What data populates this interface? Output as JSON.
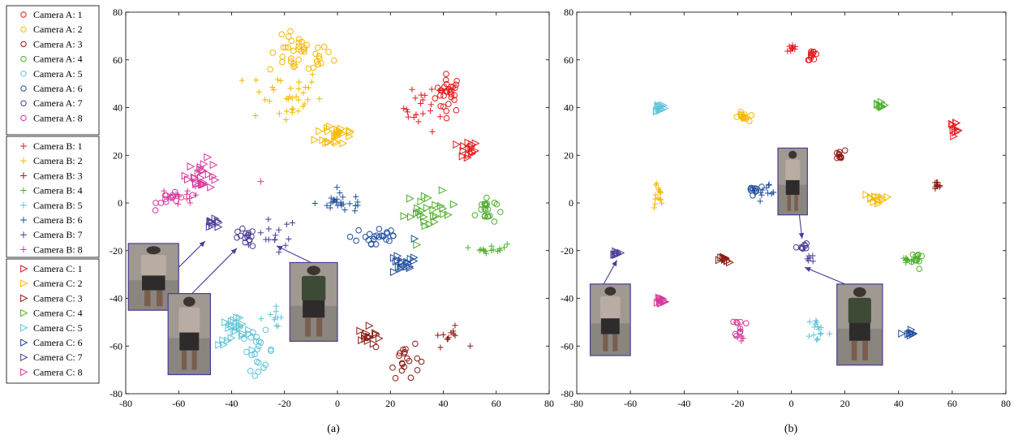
{
  "legend": {
    "groups": [
      {
        "marker": "circle",
        "entries": [
          "Camera A: 1",
          "Camera A: 2",
          "Camera A: 3",
          "Camera A: 4",
          "Camera A: 5",
          "Camera A: 6",
          "Camera A: 7",
          "Camera A: 8"
        ]
      },
      {
        "marker": "plus",
        "entries": [
          "Camera B: 1",
          "Camera B: 2",
          "Camera B: 3",
          "Camera B: 4",
          "Camera B: 5",
          "Camera B: 6",
          "Camera B: 7",
          "Camera B: 8"
        ]
      },
      {
        "marker": "triangle",
        "entries": [
          "Camera C: 1",
          "Camera C: 2",
          "Camera C: 3",
          "Camera C: 4",
          "Camera C: 5",
          "Camera C: 6",
          "Camera C: 7",
          "Camera C: 8"
        ]
      }
    ],
    "colors": [
      "#e31a1c",
      "#f5b800",
      "#8b1a10",
      "#4daf2a",
      "#5bc5d8",
      "#1f4e9e",
      "#4b3b96",
      "#d6389c"
    ]
  },
  "chart_data": [
    {
      "type": "scatter",
      "caption": "(a)",
      "xlim": [
        -80,
        80
      ],
      "ylim": [
        -80,
        80
      ],
      "xticks": [
        -80,
        -60,
        -40,
        -20,
        0,
        20,
        40,
        60,
        80
      ],
      "yticks": [
        -80,
        -60,
        -40,
        -20,
        0,
        20,
        40,
        60,
        80
      ],
      "clusters": [
        {
          "camera": "A",
          "id": 1,
          "x": 42,
          "y": 46,
          "sx": 2.5,
          "sy": 4,
          "n": 30
        },
        {
          "camera": "B",
          "id": 1,
          "x": 33,
          "y": 40,
          "sx": 4,
          "sy": 5,
          "n": 22
        },
        {
          "camera": "C",
          "id": 1,
          "x": 49,
          "y": 22,
          "sx": 2,
          "sy": 2,
          "n": 15
        },
        {
          "camera": "A",
          "id": 2,
          "x": -14,
          "y": 62,
          "sx": 6,
          "sy": 4,
          "n": 40
        },
        {
          "camera": "B",
          "id": 2,
          "x": -20,
          "y": 45,
          "sx": 7,
          "sy": 6,
          "n": 35
        },
        {
          "camera": "C",
          "id": 2,
          "x": 0,
          "y": 29,
          "sx": 4,
          "sy": 3,
          "n": 25
        },
        {
          "camera": "A",
          "id": 3,
          "x": 25,
          "y": -65,
          "sx": 3,
          "sy": 4,
          "n": 20
        },
        {
          "camera": "B",
          "id": 3,
          "x": 42,
          "y": -56,
          "sx": 3,
          "sy": 2,
          "n": 12
        },
        {
          "camera": "C",
          "id": 3,
          "x": 12,
          "y": -56,
          "sx": 2,
          "sy": 2,
          "n": 14
        },
        {
          "camera": "A",
          "id": 4,
          "x": 56,
          "y": -3,
          "sx": 2,
          "sy": 3,
          "n": 22
        },
        {
          "camera": "B",
          "id": 4,
          "x": 58,
          "y": -19,
          "sx": 3,
          "sy": 1,
          "n": 15
        },
        {
          "camera": "C",
          "id": 4,
          "x": 35,
          "y": -4,
          "sx": 5,
          "sy": 4,
          "n": 28
        },
        {
          "camera": "A",
          "id": 5,
          "x": -30,
          "y": -62,
          "sx": 3,
          "sy": 4,
          "n": 22
        },
        {
          "camera": "B",
          "id": 5,
          "x": -24,
          "y": -48,
          "sx": 3,
          "sy": 2,
          "n": 10
        },
        {
          "camera": "C",
          "id": 5,
          "x": -39,
          "y": -54,
          "sx": 3,
          "sy": 3,
          "n": 25
        },
        {
          "camera": "A",
          "id": 6,
          "x": 15,
          "y": -14,
          "sx": 5,
          "sy": 3,
          "n": 24
        },
        {
          "camera": "B",
          "id": 6,
          "x": 2,
          "y": 0,
          "sx": 5,
          "sy": 2,
          "n": 25
        },
        {
          "camera": "C",
          "id": 6,
          "x": 24,
          "y": -26,
          "sx": 3,
          "sy": 2,
          "n": 18
        },
        {
          "camera": "A",
          "id": 7,
          "x": -35,
          "y": -15,
          "sx": 2,
          "sy": 2,
          "n": 15
        },
        {
          "camera": "B",
          "id": 7,
          "x": -23,
          "y": -14,
          "sx": 4,
          "sy": 4,
          "n": 15
        },
        {
          "camera": "C",
          "id": 7,
          "x": -47,
          "y": -9,
          "sx": 2,
          "sy": 1,
          "n": 10
        },
        {
          "camera": "A",
          "id": 8,
          "x": -62,
          "y": 2,
          "sx": 3,
          "sy": 2,
          "n": 15
        },
        {
          "camera": "B",
          "id": 8,
          "x": -57,
          "y": 3,
          "sx": 3,
          "sy": 2,
          "n": 12
        },
        {
          "camera": "C",
          "id": 8,
          "x": -51,
          "y": 12,
          "sx": 3,
          "sy": 3,
          "n": 25
        }
      ],
      "extra_points": [
        {
          "camera": "B",
          "id": 8,
          "x": -29,
          "y": 9
        },
        {
          "camera": "C",
          "id": 6,
          "x": 29,
          "y": -15
        }
      ],
      "annotations": [
        {
          "img": [
            -79,
            -17,
            -60,
            -45
          ],
          "arrow": [
            -60,
            -27,
            -50,
            -16
          ]
        },
        {
          "img": [
            -64,
            -38,
            -48,
            -72
          ],
          "arrow": [
            -55,
            -38,
            -38,
            -19
          ]
        },
        {
          "img": [
            -18,
            -25,
            0,
            -58
          ],
          "arrow": [
            -10,
            -25,
            -23,
            -18
          ]
        }
      ]
    },
    {
      "type": "scatter",
      "caption": "(b)",
      "xlim": [
        -80,
        80
      ],
      "ylim": [
        -80,
        80
      ],
      "xticks": [
        -80,
        -60,
        -40,
        -20,
        0,
        20,
        40,
        60,
        80
      ],
      "yticks": [
        -80,
        -60,
        -40,
        -20,
        0,
        20,
        40,
        60,
        80
      ],
      "clusters": [
        {
          "camera": "A",
          "id": 1,
          "x": 8,
          "y": 62,
          "sx": 1,
          "sy": 1,
          "n": 12
        },
        {
          "camera": "B",
          "id": 1,
          "x": 0,
          "y": 65,
          "sx": 1,
          "sy": 1,
          "n": 10
        },
        {
          "camera": "C",
          "id": 1,
          "x": 61,
          "y": 32,
          "sx": 1,
          "sy": 1,
          "n": 10
        },
        {
          "camera": "A",
          "id": 2,
          "x": -18,
          "y": 36,
          "sx": 1,
          "sy": 1,
          "n": 15
        },
        {
          "camera": "B",
          "id": 2,
          "x": -50,
          "y": 3,
          "sx": 1,
          "sy": 3,
          "n": 15
        },
        {
          "camera": "C",
          "id": 2,
          "x": 31,
          "y": 2,
          "sx": 2,
          "sy": 1,
          "n": 12
        },
        {
          "camera": "A",
          "id": 3,
          "x": 18,
          "y": 20,
          "sx": 1,
          "sy": 1,
          "n": 10
        },
        {
          "camera": "B",
          "id": 3,
          "x": 54,
          "y": 7,
          "sx": 1,
          "sy": 1,
          "n": 10
        },
        {
          "camera": "C",
          "id": 3,
          "x": -25,
          "y": -24,
          "sx": 1,
          "sy": 1,
          "n": 10
        },
        {
          "camera": "A",
          "id": 4,
          "x": 47,
          "y": -24,
          "sx": 1,
          "sy": 2,
          "n": 12
        },
        {
          "camera": "B",
          "id": 4,
          "x": 43,
          "y": -24,
          "sx": 1,
          "sy": 1,
          "n": 10
        },
        {
          "camera": "C",
          "id": 4,
          "x": 33,
          "y": 41,
          "sx": 1,
          "sy": 1,
          "n": 10
        },
        {
          "camera": "A",
          "id": 5,
          "x": -50,
          "y": 40,
          "sx": 1,
          "sy": 1,
          "n": 0
        },
        {
          "camera": "B",
          "id": 5,
          "x": 10,
          "y": -53,
          "sx": 2,
          "sy": 3,
          "n": 15
        },
        {
          "camera": "C",
          "id": 5,
          "x": -49,
          "y": 40,
          "sx": 1,
          "sy": 1,
          "n": 12
        },
        {
          "camera": "A",
          "id": 6,
          "x": -14,
          "y": 6,
          "sx": 2,
          "sy": 1,
          "n": 10
        },
        {
          "camera": "B",
          "id": 6,
          "x": -8,
          "y": 4,
          "sx": 3,
          "sy": 2,
          "n": 12
        },
        {
          "camera": "C",
          "id": 6,
          "x": 44,
          "y": -55,
          "sx": 1,
          "sy": 1,
          "n": 10
        },
        {
          "camera": "A",
          "id": 7,
          "x": 4,
          "y": -18,
          "sx": 1,
          "sy": 1,
          "n": 8
        },
        {
          "camera": "B",
          "id": 7,
          "x": 7,
          "y": -23,
          "sx": 1,
          "sy": 1,
          "n": 6
        },
        {
          "camera": "C",
          "id": 7,
          "x": -65,
          "y": -21,
          "sx": 0.5,
          "sy": 0.5,
          "n": 8
        },
        {
          "camera": "A",
          "id": 8,
          "x": -19,
          "y": -52,
          "sx": 1,
          "sy": 2,
          "n": 10
        },
        {
          "camera": "B",
          "id": 8,
          "x": -19,
          "y": -54,
          "sx": 1,
          "sy": 2,
          "n": 6
        },
        {
          "camera": "C",
          "id": 8,
          "x": -49,
          "y": -41,
          "sx": 1,
          "sy": 1,
          "n": 12
        }
      ],
      "extra_points": [],
      "annotations": [
        {
          "img": [
            -75,
            -34,
            -60,
            -64
          ],
          "arrow": [
            -70,
            -34,
            -65,
            -24
          ]
        },
        {
          "img": [
            -5,
            23,
            6,
            -5
          ],
          "arrow": [
            3,
            -5,
            4,
            -15
          ]
        },
        {
          "img": [
            17,
            -34,
            34,
            -68
          ],
          "arrow": [
            20,
            -34,
            5,
            -27
          ]
        }
      ]
    }
  ]
}
